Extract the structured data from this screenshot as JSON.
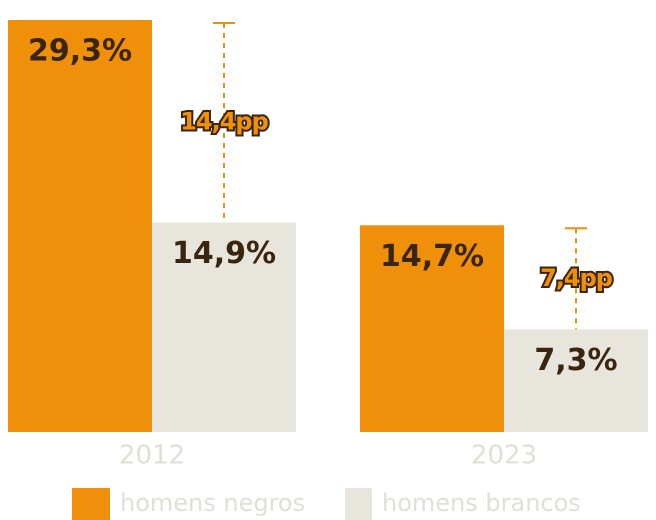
{
  "chart_data": {
    "type": "bar",
    "categories": [
      "2012",
      "2023"
    ],
    "series": [
      {
        "name": "homens negros",
        "color": "#f0900a",
        "values": [
          29.3,
          14.7
        ],
        "value_labels": [
          "29,3%",
          "14,7%"
        ]
      },
      {
        "name": "homens brancos",
        "color": "#e8e6dc",
        "values": [
          14.9,
          7.3
        ],
        "value_labels": [
          "14,9%",
          "7,3%"
        ]
      }
    ],
    "annotations": [
      "14,4pp",
      "7,4pp"
    ],
    "annotation_color": "#f0900a"
  }
}
